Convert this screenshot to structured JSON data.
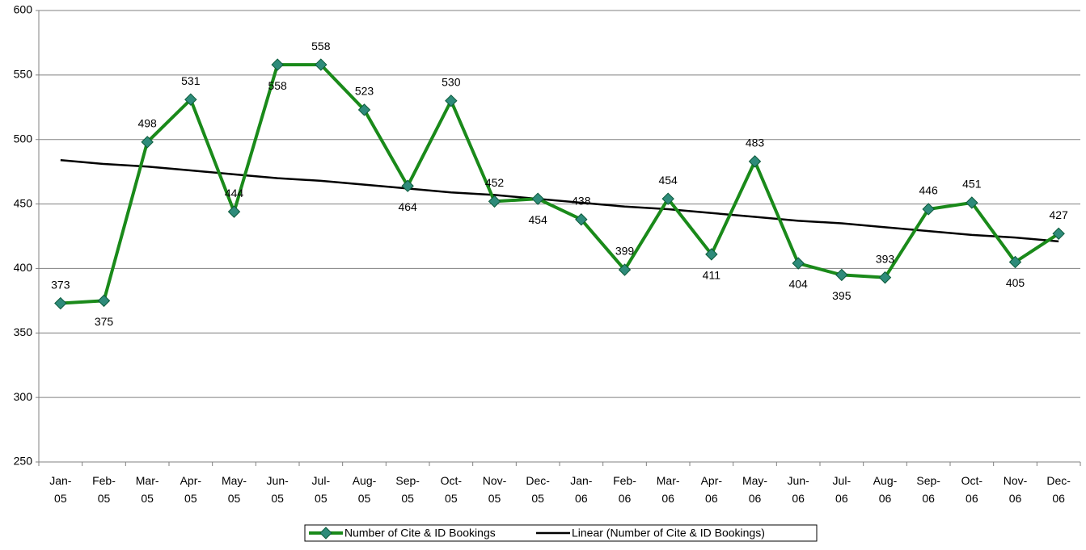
{
  "chart_data": {
    "type": "line",
    "categories": [
      "Jan-05",
      "Feb-05",
      "Mar-05",
      "Apr-05",
      "May-05",
      "Jun-05",
      "Jul-05",
      "Aug-05",
      "Sep-05",
      "Oct-05",
      "Nov-05",
      "Dec-05",
      "Jan-06",
      "Feb-06",
      "Mar-06",
      "Apr-06",
      "May-06",
      "Jun-06",
      "Jul-06",
      "Aug-06",
      "Sep-06",
      "Oct-06",
      "Nov-06",
      "Dec-06"
    ],
    "series": [
      {
        "name": "Number of Cite & ID Bookings",
        "color": "#1a8a1a",
        "marker_color": "#2e8b7a",
        "values": [
          373,
          375,
          498,
          531,
          444,
          558,
          558,
          523,
          464,
          530,
          452,
          454,
          438,
          399,
          454,
          411,
          483,
          404,
          395,
          393,
          446,
          451,
          405,
          427
        ]
      },
      {
        "name": "Linear (Number of Cite & ID Bookings)",
        "color": "#000000",
        "values": [
          484,
          481,
          479,
          476,
          473,
          470,
          468,
          465,
          462,
          459,
          457,
          454,
          451,
          448,
          446,
          443,
          440,
          437,
          435,
          432,
          429,
          426,
          424,
          421
        ]
      }
    ],
    "ylim": [
      250,
      600
    ],
    "yticks": [
      250,
      300,
      350,
      400,
      450,
      500,
      550,
      600
    ],
    "grid": true,
    "legend": "bottom"
  }
}
